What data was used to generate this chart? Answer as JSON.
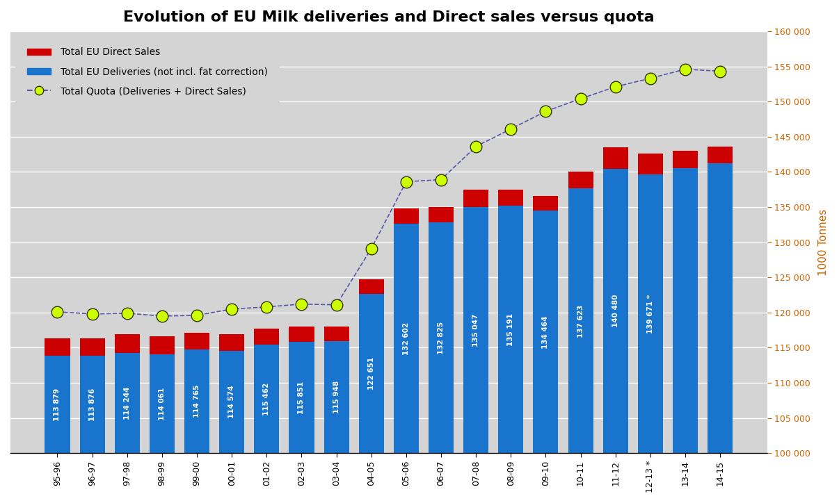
{
  "title": "Evolution of EU Milk deliveries and Direct sales versus quota",
  "categories": [
    "95-96",
    "96-97",
    "97-98",
    "98-99",
    "99-00",
    "00-01",
    "01-02",
    "02-03",
    "03-04",
    "04-05",
    "05-06",
    "06-07",
    "07-08",
    "08-09",
    "09-10",
    "10-11",
    "11-12",
    "12-13 *",
    "13-14",
    "14-15"
  ],
  "deliveries": [
    113879,
    113876,
    114244,
    114061,
    114765,
    114574,
    115462,
    115851,
    115948,
    122651,
    132602,
    132825,
    135047,
    135191,
    134464,
    137623,
    140480,
    139671,
    140500,
    141200
  ],
  "direct_sales": [
    2500,
    2500,
    2700,
    2600,
    2400,
    2300,
    2300,
    2200,
    2100,
    2100,
    2200,
    2200,
    2400,
    2300,
    2100,
    2400,
    3000,
    2900,
    2500,
    2400
  ],
  "quota": [
    120100,
    119800,
    119900,
    119500,
    119600,
    120500,
    120800,
    121200,
    121100,
    129100,
    138600,
    138900,
    143600,
    146100,
    148600,
    150400,
    152100,
    153300,
    154600,
    154300
  ],
  "bar_labels": [
    "113 879",
    "113 876",
    "114 244",
    "114 061",
    "114 765",
    "114 574",
    "115 462",
    "115 851",
    "115 948",
    "122 651",
    "132 602",
    "132 825",
    "135 047",
    "135 191",
    "134 464",
    "137 623",
    "140 480",
    "139 671 *",
    "",
    ""
  ],
  "deliveries_color": "#1874CD",
  "direct_sales_color": "#CC0000",
  "quota_line_color": "#5555AA",
  "quota_marker_facecolor": "#CCFF00",
  "quota_marker_edge_color": "#333300",
  "background_color": "#D4D4D4",
  "plot_area_color": "#D4D4D4",
  "ylabel_right": "1000 Tonnes",
  "ylim_min": 100000,
  "ylim_max": 160000,
  "yticks": [
    100000,
    105000,
    110000,
    115000,
    120000,
    125000,
    130000,
    135000,
    140000,
    145000,
    150000,
    155000,
    160000
  ],
  "legend_direct": "Total EU Direct Sales",
  "legend_deliveries": "Total EU Deliveries (not incl. fat correction)",
  "legend_quota": "Total Quota (Deliveries + Direct Sales)",
  "title_fontsize": 16,
  "label_fontsize": 7.5,
  "tick_fontsize": 9,
  "right_tick_color": "#CC6600",
  "right_label_color": "#CC6600",
  "grid_color": "#FFFFFF",
  "bar_width": 0.72
}
